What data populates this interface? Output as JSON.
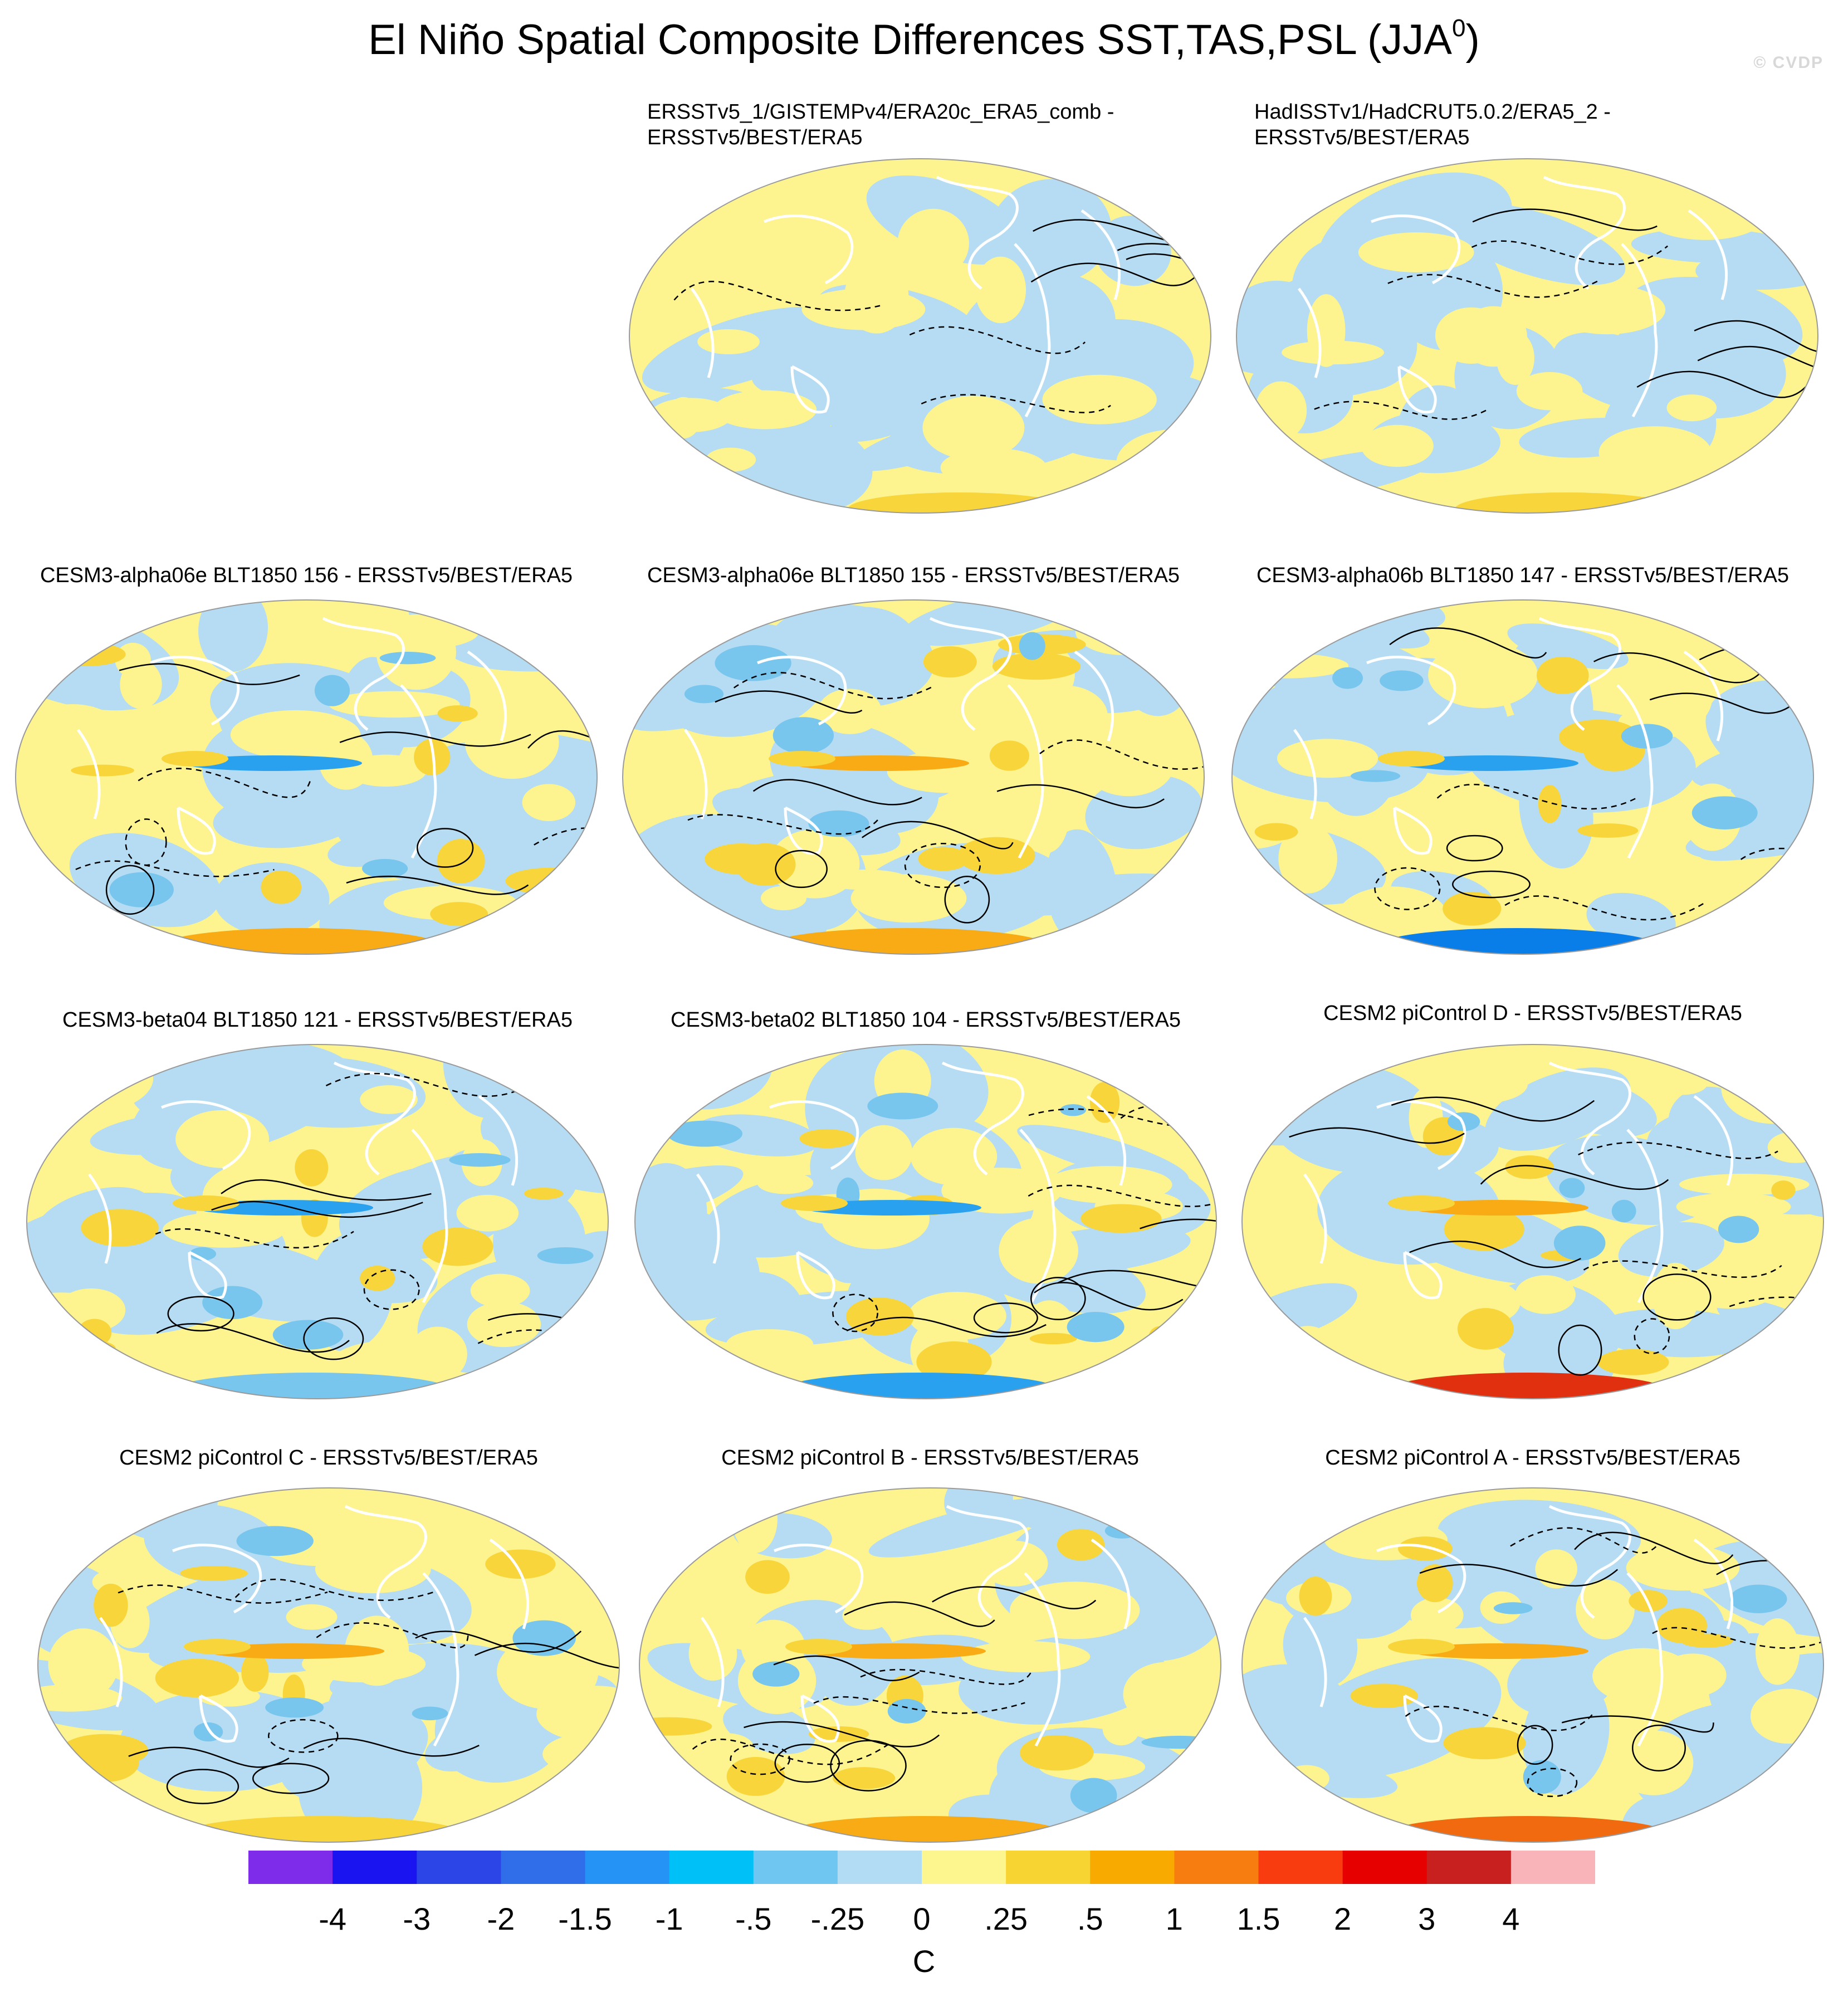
{
  "title": "El Niño Spatial Composite Differences SST,TAS,PSL (JJA",
  "title_superscript": "0",
  "title_close": ")",
  "watermark": "© CVDP",
  "panels": [
    {
      "title_line1": "ERSSTv5_1/GISTEMPv4/ERA20c_ERA5_comb -",
      "title_line2": "ERSSTv5/BEST/ERA5"
    },
    {
      "title_line1": "HadISSTv1/HadCRUT5.0.2/ERA5_2 -",
      "title_line2": "ERSSTv5/BEST/ERA5"
    },
    {
      "title_line1": "CESM3-alpha06e BLT1850 156 - ERSSTv5/BEST/ERA5",
      "title_line2": ""
    },
    {
      "title_line1": "CESM3-alpha06e BLT1850 155 - ERSSTv5/BEST/ERA5",
      "title_line2": ""
    },
    {
      "title_line1": "CESM3-alpha06b BLT1850 147 - ERSSTv5/BEST/ERA5",
      "title_line2": ""
    },
    {
      "title_line1": "CESM3-beta04 BLT1850 121 - ERSSTv5/BEST/ERA5",
      "title_line2": ""
    },
    {
      "title_line1": "CESM3-beta02 BLT1850 104 - ERSSTv5/BEST/ERA5",
      "title_line2": ""
    },
    {
      "title_line1": "CESM2 piControl D - ERSSTv5/BEST/ERA5",
      "title_line2": ""
    },
    {
      "title_line1": "CESM2 piControl C - ERSSTv5/BEST/ERA5",
      "title_line2": ""
    },
    {
      "title_line1": "CESM2 piControl B - ERSSTv5/BEST/ERA5",
      "title_line2": ""
    },
    {
      "title_line1": "CESM2 piControl A - ERSSTv5/BEST/ERA5",
      "title_line2": ""
    }
  ],
  "colorbar": {
    "units": "C",
    "labels": [
      "-4",
      "-3",
      "-2",
      "-1.5",
      "-1",
      "-.5",
      "-.25",
      "0",
      ".25",
      ".5",
      "1",
      "1.5",
      "2",
      "3",
      "4"
    ],
    "colors": [
      "#7f2bea",
      "#1a14f0",
      "#2b45e6",
      "#2f6ee8",
      "#2592f5",
      "#00c0f8",
      "#6fc6f0",
      "#b2dcf4",
      "#fdf58e",
      "#f8d433",
      "#f8aa00",
      "#f87d10",
      "#f83c10",
      "#e60000",
      "#c81f1f",
      "#f8b4b8"
    ]
  },
  "map_palette": {
    "ocean_neg": "#b5dcf2",
    "ocean_pos": "#fdf490",
    "neg2": "#78c5ee",
    "neg3": "#2aa1ef",
    "neg4": "#0a7ee8",
    "pos2": "#f8d53a",
    "pos3": "#f8ab14",
    "pos4": "#f26a10",
    "pos5": "#e03010",
    "outline": "#000000"
  }
}
